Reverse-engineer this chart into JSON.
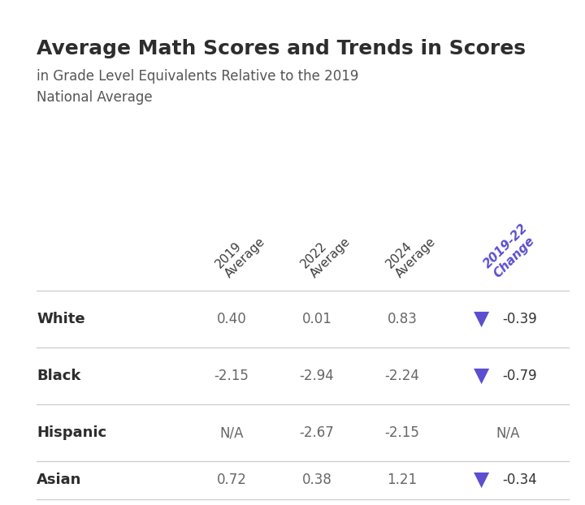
{
  "title": "Average Math Scores and Trends in Scores",
  "subtitle": "in Grade Level Equivalents Relative to the 2019\nNational Average",
  "col_header_texts": [
    "2019\nAverage",
    "2022\nAverage",
    "2024\nAverage",
    "2019-22\nChange"
  ],
  "col_header_colors": [
    "#3d3d3d",
    "#3d3d3d",
    "#3d3d3d",
    "#5b4fcf"
  ],
  "rows": [
    {
      "label": "White",
      "vals": [
        "0.40",
        "0.01",
        "0.83",
        "-0.39"
      ],
      "arrow": true
    },
    {
      "label": "Black",
      "vals": [
        "-2.15",
        "-2.94",
        "-2.24",
        "-0.79"
      ],
      "arrow": true
    },
    {
      "label": "Hispanic",
      "vals": [
        "N/A",
        "-2.67",
        "-2.15",
        "N/A"
      ],
      "arrow": false
    },
    {
      "label": "Asian",
      "vals": [
        "0.72",
        "0.38",
        "1.21",
        "-0.34"
      ],
      "arrow": true
    }
  ],
  "arrow_color": "#5b4fcf",
  "label_color": "#2d2d2d",
  "value_color": "#666666",
  "change_color": "#333333",
  "title_color": "#2d2d2d",
  "subtitle_color": "#555555",
  "bg_color": "#ffffff",
  "line_color": "#cccccc",
  "title_fontsize": 18,
  "subtitle_fontsize": 12,
  "header_fontsize": 11,
  "row_fontsize": 13,
  "val_fontsize": 12,
  "arrow_fontsize": 18
}
